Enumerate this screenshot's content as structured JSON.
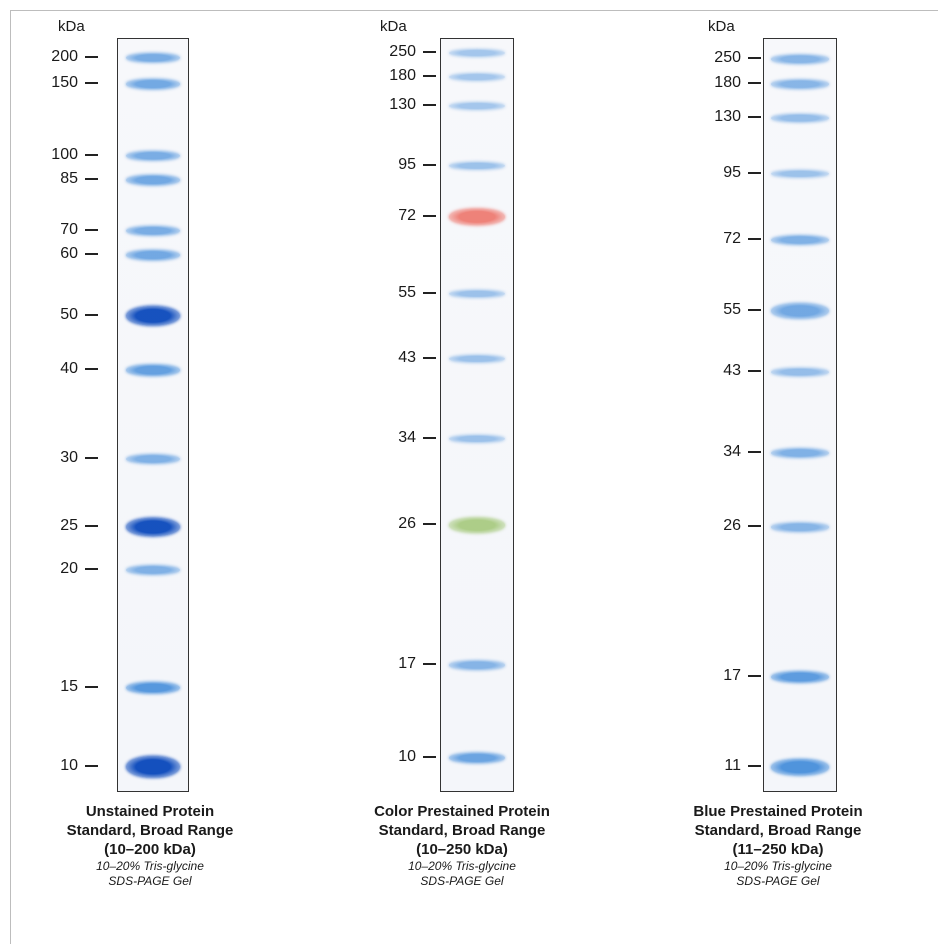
{
  "colors": {
    "blue_band": "#2e7fd6",
    "blue_dark": "#1a5fc4",
    "red_band": "#ef7b6b",
    "green_band": "#9cc46c",
    "lane_border": "#333333"
  },
  "panels": [
    {
      "unit": "kDa",
      "title_lines": [
        "Unstained Protein",
        "Standard, Broad Range",
        "(10–200 kDa)"
      ],
      "subtitle_lines": [
        "10–20% Tris-glycine",
        "SDS-PAGE Gel"
      ],
      "markers": [
        {
          "label": "200",
          "intensity": 0.55
        },
        {
          "label": "150",
          "intensity": 0.6
        },
        {
          "label": "100",
          "intensity": 0.55
        },
        {
          "label": "85",
          "intensity": 0.6
        },
        {
          "label": "70",
          "intensity": 0.55
        },
        {
          "label": "60",
          "intensity": 0.6
        },
        {
          "label": "50",
          "intensity": 0.95
        },
        {
          "label": "40",
          "intensity": 0.7
        },
        {
          "label": "30",
          "intensity": 0.5
        },
        {
          "label": "25",
          "intensity": 0.95
        },
        {
          "label": "20",
          "intensity": 0.5
        },
        {
          "label": "15",
          "intensity": 0.8
        },
        {
          "label": "10",
          "intensity": 1.0
        }
      ]
    },
    {
      "unit": "kDa",
      "title_lines": [
        "Color Prestained Protein",
        "Standard, Broad Range",
        "(10–250 kDa)"
      ],
      "subtitle_lines": [
        "10–20% Tris-glycine",
        "SDS-PAGE Gel"
      ],
      "markers": [
        {
          "label": "250",
          "intensity": 0.25,
          "color": "blue"
        },
        {
          "label": "180",
          "intensity": 0.25,
          "color": "blue"
        },
        {
          "label": "130",
          "intensity": 0.25,
          "color": "blue"
        },
        {
          "label": "95",
          "intensity": 0.3,
          "color": "blue"
        },
        {
          "label": "72",
          "intensity": 0.8,
          "color": "red"
        },
        {
          "label": "55",
          "intensity": 0.3,
          "color": "blue"
        },
        {
          "label": "43",
          "intensity": 0.3,
          "color": "blue"
        },
        {
          "label": "34",
          "intensity": 0.3,
          "color": "blue"
        },
        {
          "label": "26",
          "intensity": 0.75,
          "color": "green"
        },
        {
          "label": "17",
          "intensity": 0.45,
          "color": "blue"
        },
        {
          "label": "10",
          "intensity": 0.65,
          "color": "blue"
        }
      ]
    },
    {
      "unit": "kDa",
      "title_lines": [
        "Blue Prestained Protein",
        "Standard, Broad Range",
        "(11–250 kDa)"
      ],
      "subtitle_lines": [
        "10–20% Tris-glycine",
        "SDS-PAGE Gel"
      ],
      "markers": [
        {
          "label": "250",
          "intensity": 0.45
        },
        {
          "label": "180",
          "intensity": 0.45
        },
        {
          "label": "130",
          "intensity": 0.35
        },
        {
          "label": "95",
          "intensity": 0.3
        },
        {
          "label": "72",
          "intensity": 0.5
        },
        {
          "label": "55",
          "intensity": 0.6
        },
        {
          "label": "43",
          "intensity": 0.35
        },
        {
          "label": "34",
          "intensity": 0.5
        },
        {
          "label": "26",
          "intensity": 0.45
        },
        {
          "label": "17",
          "intensity": 0.75
        },
        {
          "label": "11",
          "intensity": 0.85
        }
      ]
    }
  ]
}
